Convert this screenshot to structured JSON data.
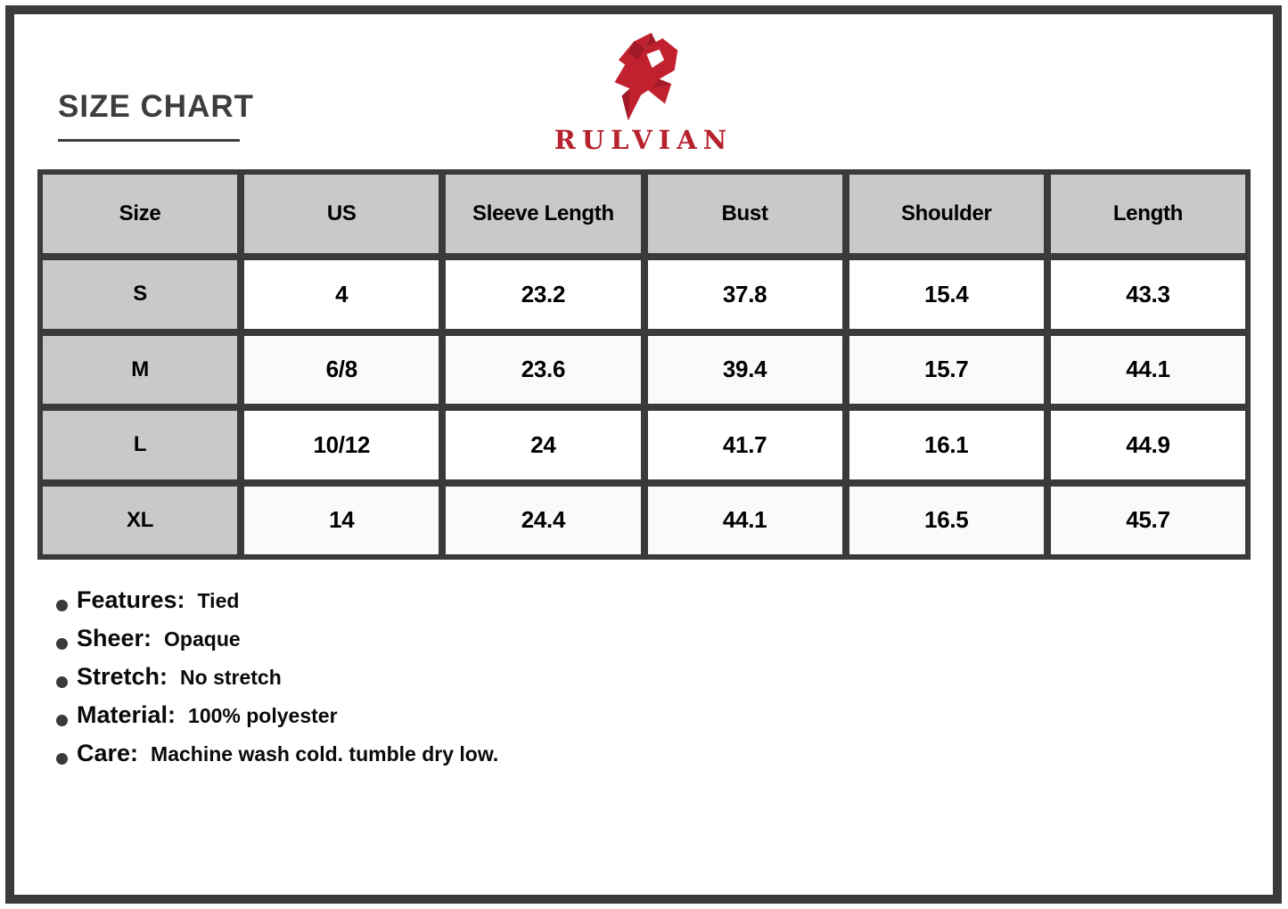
{
  "header": {
    "title": "SIZE CHART"
  },
  "brand": {
    "name": "RULVIAN",
    "logo_icon": "angular-r-monogram",
    "colors": {
      "red": "#b6232f",
      "mark_red": "#c1212e",
      "mark_dark_red": "#9e1b27"
    }
  },
  "chart_data": {
    "type": "table",
    "title": "Size Chart",
    "columns": [
      "Size",
      "US",
      "Sleeve Length",
      "Bust",
      "Shoulder",
      "Length"
    ],
    "rows": [
      [
        "S",
        "4",
        "23.2",
        "37.8",
        "15.4",
        "43.3"
      ],
      [
        "M",
        "6/8",
        "23.6",
        "39.4",
        "15.7",
        "44.1"
      ],
      [
        "L",
        "10/12",
        "24",
        "41.7",
        "16.1",
        "44.9"
      ],
      [
        "XL",
        "14",
        "24.4",
        "44.1",
        "16.5",
        "45.7"
      ]
    ]
  },
  "details": [
    {
      "label": "Features:",
      "value": "Tied"
    },
    {
      "label": "Sheer:",
      "value": "Opaque"
    },
    {
      "label": "Stretch:",
      "value": "No stretch"
    },
    {
      "label": "Material:",
      "value": "100% polyester"
    },
    {
      "label": "Care:",
      "value": "Machine wash cold. tumble dry low."
    }
  ],
  "colors": {
    "frame_and_grid": "#3a3a3a",
    "header_cell_gray": "#c9c9c9",
    "alt_row": "#fafafa",
    "title_text": "#3d3d3d"
  }
}
